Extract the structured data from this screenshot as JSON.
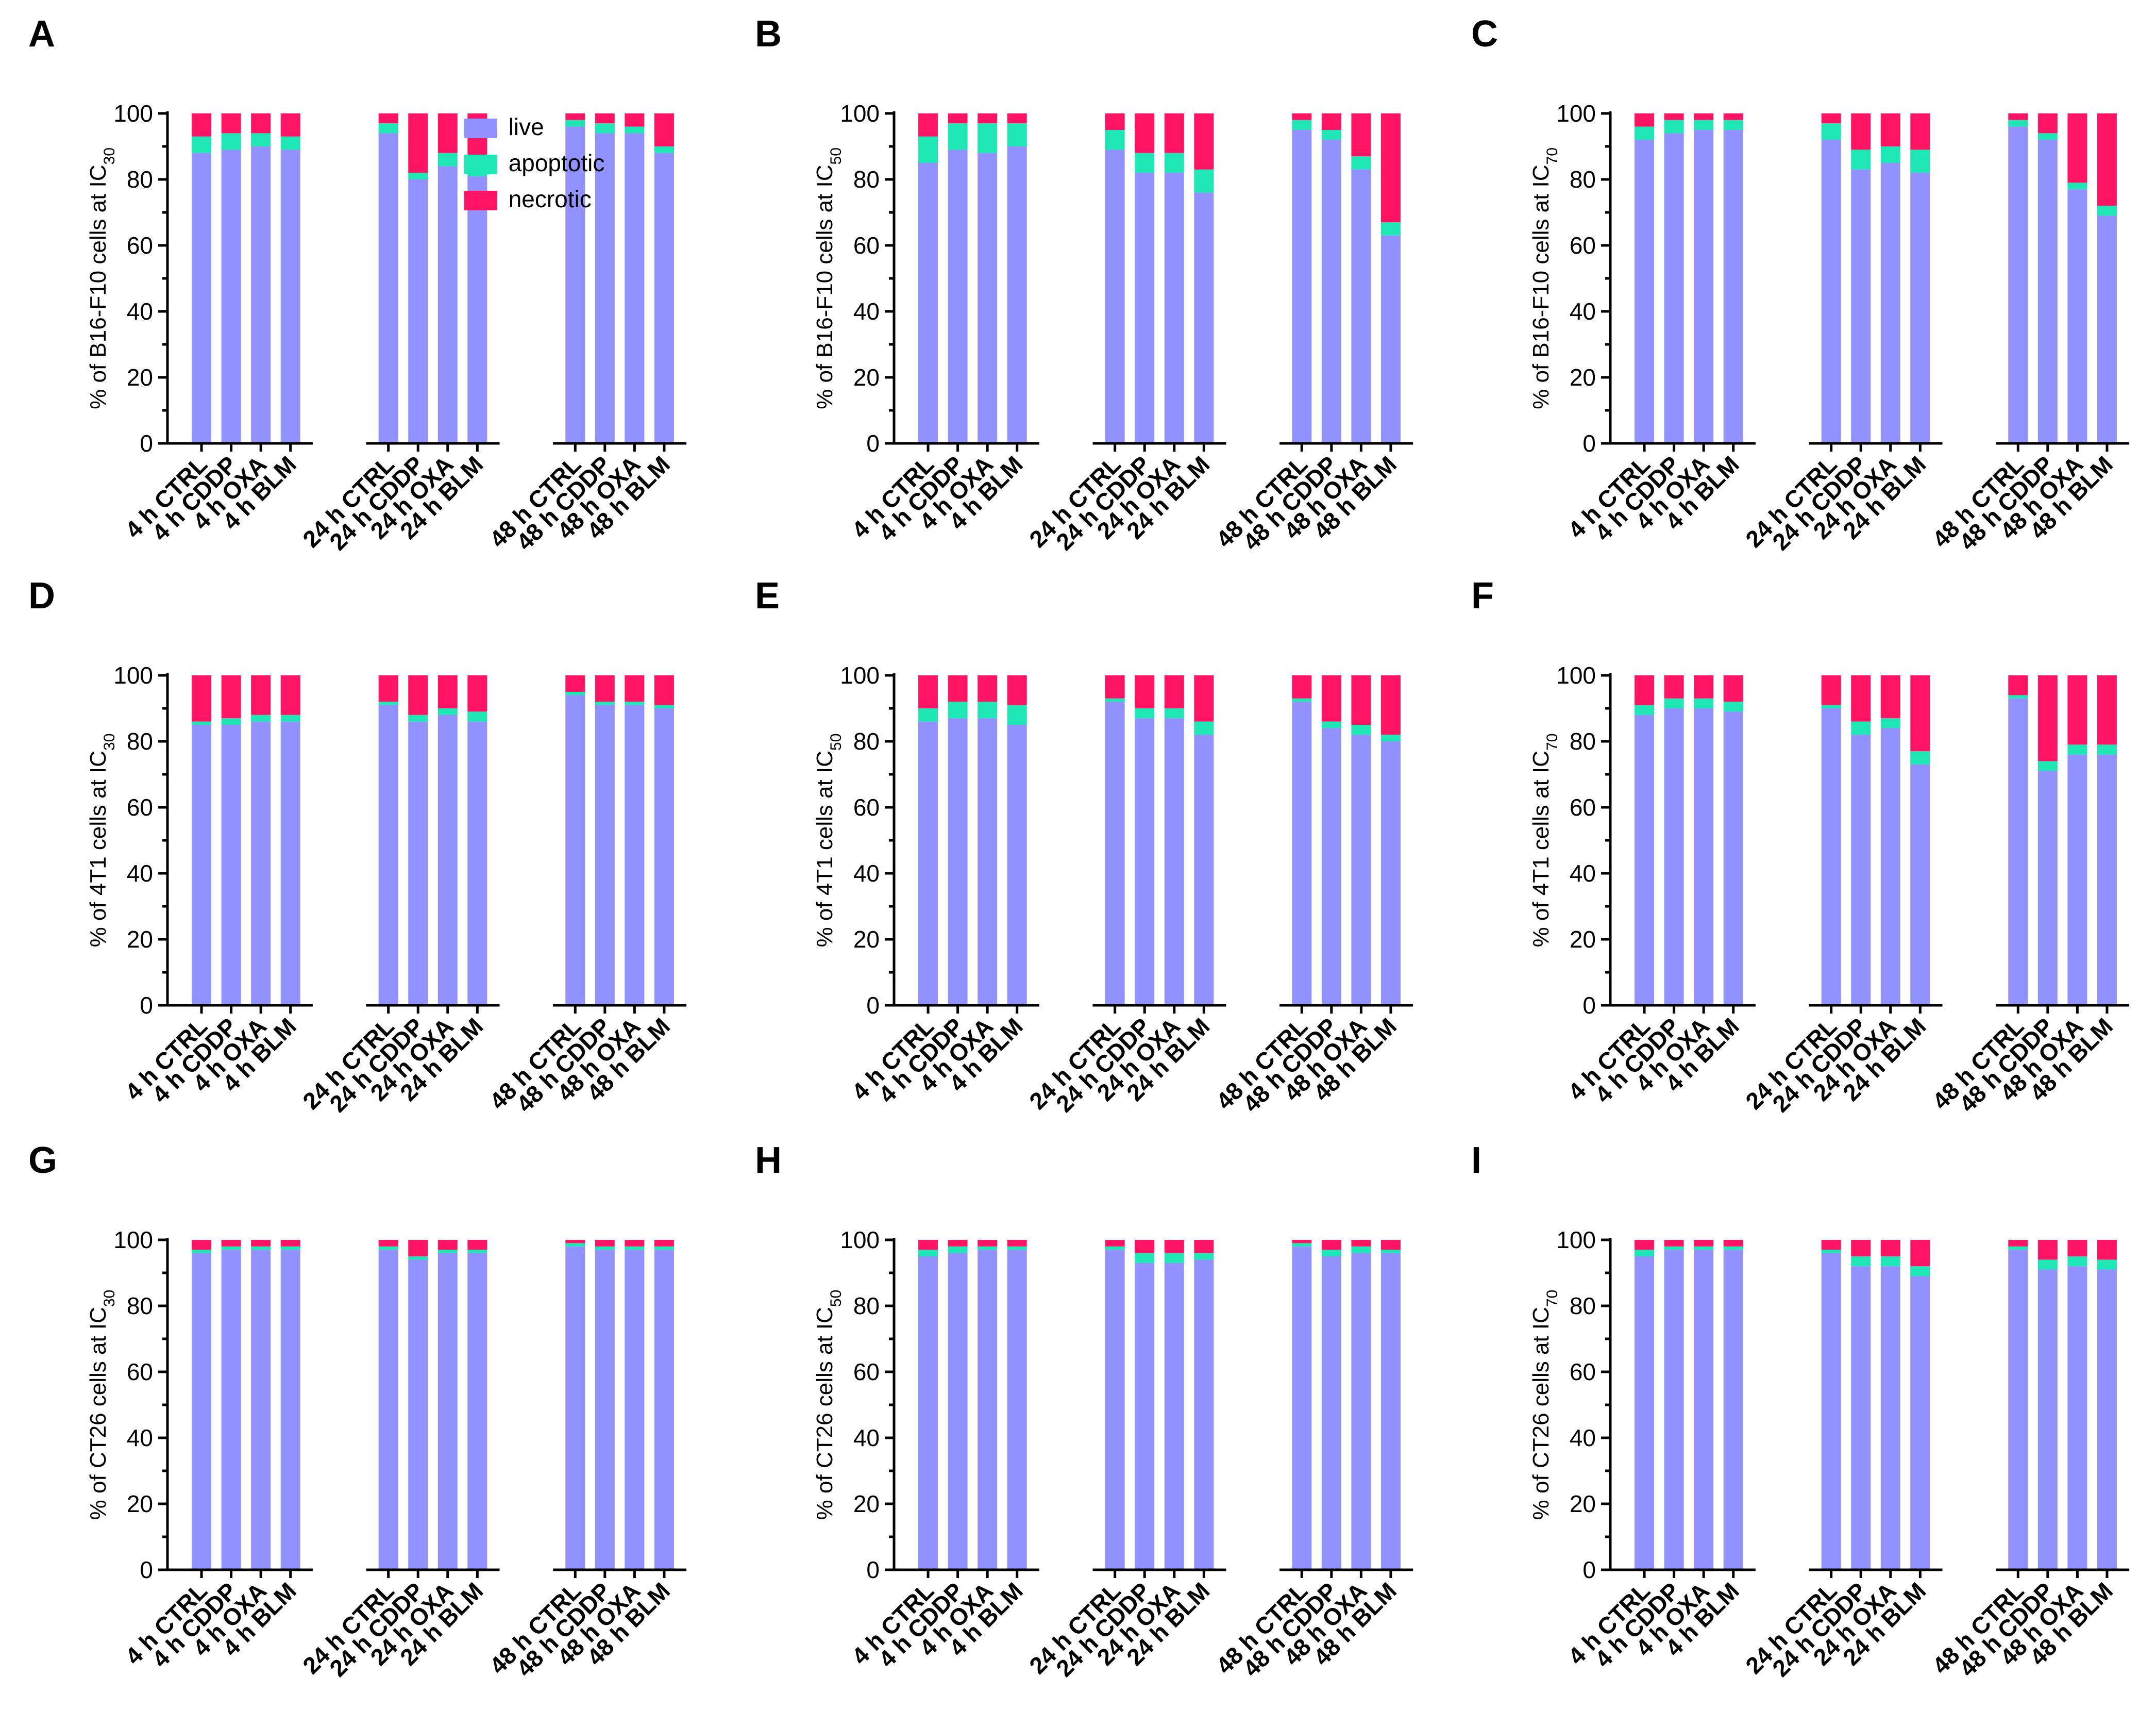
{
  "legend": [
    {
      "name": "live",
      "color": "#9191FF"
    },
    {
      "name": "apoptotic",
      "color": "#1EE6B4"
    },
    {
      "name": "necrotic",
      "color": "#FF1464"
    }
  ],
  "colors": {
    "live": "#9191FF",
    "apoptotic": "#1EE6B4",
    "necrotic": "#FF1464",
    "axis": "#000000"
  },
  "chart_data": [
    {
      "panel": "A",
      "type": "bar",
      "stacked": true,
      "ylabel_main": "% of B16-F10 cells at IC",
      "ylabel_sub": "30",
      "ylim": [
        0,
        100
      ],
      "yticks": [
        "0",
        "20",
        "40",
        "60",
        "80",
        "100"
      ],
      "categories": [
        "4 h CTRL",
        "4 h CDDP",
        "4 h OXA",
        "4 h BLM",
        "24 h CTRL",
        "24 h CDDP",
        "24 h OXA",
        "24 h BLM",
        "48 h CTRL",
        "48 h CDDP",
        "48 h OXA",
        "48 h BLM"
      ],
      "series": [
        {
          "name": "live",
          "values": [
            88,
            89,
            90,
            89,
            94,
            80,
            84,
            81,
            96,
            94,
            94,
            88
          ]
        },
        {
          "name": "apoptotic",
          "values": [
            5,
            5,
            4,
            4,
            3,
            2,
            4,
            4,
            2,
            3,
            2,
            2
          ]
        },
        {
          "name": "necrotic",
          "values": [
            7,
            6,
            6,
            7,
            3,
            18,
            12,
            15,
            2,
            3,
            4,
            10
          ]
        }
      ]
    },
    {
      "panel": "B",
      "type": "bar",
      "stacked": true,
      "ylabel_main": "% of B16-F10 cells at IC",
      "ylabel_sub": "50",
      "ylim": [
        0,
        100
      ],
      "yticks": [
        "0",
        "20",
        "40",
        "60",
        "80",
        "100"
      ],
      "categories": [
        "4 h CTRL",
        "4 h CDDP",
        "4 h OXA",
        "4 h BLM",
        "24 h CTRL",
        "24 h CDDP",
        "24 h OXA",
        "24 h BLM",
        "48 h CTRL",
        "48 h CDDP",
        "48 h OXA",
        "48 h BLM"
      ],
      "series": [
        {
          "name": "live",
          "values": [
            85,
            89,
            88,
            90,
            89,
            82,
            82,
            76,
            95,
            92,
            83,
            63
          ]
        },
        {
          "name": "apoptotic",
          "values": [
            8,
            8,
            9,
            7,
            6,
            6,
            6,
            7,
            3,
            3,
            4,
            4
          ]
        },
        {
          "name": "necrotic",
          "values": [
            7,
            3,
            3,
            3,
            5,
            12,
            12,
            17,
            2,
            5,
            13,
            33
          ]
        }
      ]
    },
    {
      "panel": "C",
      "type": "bar",
      "stacked": true,
      "ylabel_main": "% of B16-F10 cells at IC",
      "ylabel_sub": "70",
      "ylim": [
        0,
        100
      ],
      "yticks": [
        "0",
        "20",
        "40",
        "60",
        "80",
        "100"
      ],
      "categories": [
        "4 h CTRL",
        "4 h CDDP",
        "4 h OXA",
        "4 h BLM",
        "24 h CTRL",
        "24 h CDDP",
        "24 h OXA",
        "24 h BLM",
        "48 h CTRL",
        "48 h CDDP",
        "48 h OXA",
        "48 h BLM"
      ],
      "series": [
        {
          "name": "live",
          "values": [
            92,
            94,
            95,
            95,
            92,
            83,
            85,
            82,
            96,
            92,
            77,
            69
          ]
        },
        {
          "name": "apoptotic",
          "values": [
            4,
            4,
            3,
            3,
            5,
            6,
            5,
            7,
            2,
            2,
            2,
            3
          ]
        },
        {
          "name": "necrotic",
          "values": [
            4,
            2,
            2,
            2,
            3,
            11,
            10,
            11,
            2,
            6,
            21,
            28
          ]
        }
      ]
    },
    {
      "panel": "D",
      "type": "bar",
      "stacked": true,
      "ylabel_main": "% of 4T1 cells at IC",
      "ylabel_sub": "30",
      "ylim": [
        0,
        100
      ],
      "yticks": [
        "0",
        "20",
        "40",
        "60",
        "80",
        "100"
      ],
      "categories": [
        "4 h CTRL",
        "4 h CDDP",
        "4 h OXA",
        "4 h BLM",
        "24 h CTRL",
        "24 h CDDP",
        "24 h OXA",
        "24 h BLM",
        "48 h CTRL",
        "48 h CDDP",
        "48 h OXA",
        "48 h BLM"
      ],
      "series": [
        {
          "name": "live",
          "values": [
            85,
            85,
            86,
            86,
            91,
            86,
            88,
            86,
            94,
            91,
            91,
            90
          ]
        },
        {
          "name": "apoptotic",
          "values": [
            1,
            2,
            2,
            2,
            1,
            2,
            2,
            3,
            1,
            1,
            1,
            1
          ]
        },
        {
          "name": "necrotic",
          "values": [
            14,
            13,
            12,
            12,
            8,
            12,
            10,
            11,
            5,
            8,
            8,
            9
          ]
        }
      ]
    },
    {
      "panel": "E",
      "type": "bar",
      "stacked": true,
      "ylabel_main": "% of 4T1 cells at IC",
      "ylabel_sub": "50",
      "ylim": [
        0,
        100
      ],
      "yticks": [
        "0",
        "20",
        "40",
        "60",
        "80",
        "100"
      ],
      "categories": [
        "4 h CTRL",
        "4 h CDDP",
        "4 h OXA",
        "4 h BLM",
        "24 h CTRL",
        "24 h CDDP",
        "24 h OXA",
        "24 h BLM",
        "48 h CTRL",
        "48 h CDDP",
        "48 h OXA",
        "48 h BLM"
      ],
      "series": [
        {
          "name": "live",
          "values": [
            86,
            87,
            87,
            85,
            92,
            87,
            87,
            82,
            92,
            84,
            82,
            80
          ]
        },
        {
          "name": "apoptotic",
          "values": [
            4,
            5,
            5,
            6,
            1,
            3,
            3,
            4,
            1,
            2,
            3,
            2
          ]
        },
        {
          "name": "necrotic",
          "values": [
            10,
            8,
            8,
            9,
            7,
            10,
            10,
            14,
            7,
            14,
            15,
            18
          ]
        }
      ]
    },
    {
      "panel": "F",
      "type": "bar",
      "stacked": true,
      "ylabel_main": "% of 4T1 cells at IC",
      "ylabel_sub": "70",
      "ylim": [
        0,
        100
      ],
      "yticks": [
        "0",
        "20",
        "40",
        "60",
        "80",
        "100"
      ],
      "categories": [
        "4 h CTRL",
        "4 h CDDP",
        "4 h OXA",
        "4 h BLM",
        "24 h CTRL",
        "24 h CDDP",
        "24 h OXA",
        "24 h BLM",
        "48 h CTRL",
        "48 h CDDP",
        "48 h OXA",
        "48 h BLM"
      ],
      "series": [
        {
          "name": "live",
          "values": [
            88,
            90,
            90,
            89,
            90,
            82,
            84,
            73,
            93,
            71,
            76,
            76
          ]
        },
        {
          "name": "apoptotic",
          "values": [
            3,
            3,
            3,
            3,
            1,
            4,
            3,
            4,
            1,
            3,
            3,
            3
          ]
        },
        {
          "name": "necrotic",
          "values": [
            9,
            7,
            7,
            8,
            9,
            14,
            13,
            23,
            6,
            26,
            21,
            21
          ]
        }
      ]
    },
    {
      "panel": "G",
      "type": "bar",
      "stacked": true,
      "ylabel_main": "% of CT26 cells at IC",
      "ylabel_sub": "30",
      "ylim": [
        0,
        100
      ],
      "yticks": [
        "0",
        "20",
        "40",
        "60",
        "80",
        "100"
      ],
      "categories": [
        "4 h CTRL",
        "4 h CDDP",
        "4 h OXA",
        "4 h BLM",
        "24 h CTRL",
        "24 h CDDP",
        "24 h OXA",
        "24 h BLM",
        "48 h CTRL",
        "48 h CDDP",
        "48 h OXA",
        "48 h BLM"
      ],
      "series": [
        {
          "name": "live",
          "values": [
            96,
            97,
            97,
            97,
            97,
            94,
            96,
            96,
            98,
            97,
            97,
            97
          ]
        },
        {
          "name": "apoptotic",
          "values": [
            1,
            1,
            1,
            1,
            1,
            1,
            1,
            1,
            1,
            1,
            1,
            1
          ]
        },
        {
          "name": "necrotic",
          "values": [
            3,
            2,
            2,
            2,
            2,
            5,
            3,
            3,
            1,
            2,
            2,
            2
          ]
        }
      ]
    },
    {
      "panel": "H",
      "type": "bar",
      "stacked": true,
      "ylabel_main": "% of CT26 cells at IC",
      "ylabel_sub": "50",
      "ylim": [
        0,
        100
      ],
      "yticks": [
        "0",
        "20",
        "40",
        "60",
        "80",
        "100"
      ],
      "categories": [
        "4 h CTRL",
        "4 h CDDP",
        "4 h OXA",
        "4 h BLM",
        "24 h CTRL",
        "24 h CDDP",
        "24 h OXA",
        "24 h BLM",
        "48 h CTRL",
        "48 h CDDP",
        "48 h OXA",
        "48 h BLM"
      ],
      "series": [
        {
          "name": "live",
          "values": [
            95,
            96,
            97,
            97,
            97,
            93,
            93,
            94,
            98,
            95,
            96,
            96
          ]
        },
        {
          "name": "apoptotic",
          "values": [
            2,
            2,
            1,
            1,
            1,
            3,
            3,
            2,
            1,
            2,
            2,
            1
          ]
        },
        {
          "name": "necrotic",
          "values": [
            3,
            2,
            2,
            2,
            2,
            4,
            4,
            4,
            1,
            3,
            2,
            3
          ]
        }
      ]
    },
    {
      "panel": "I",
      "type": "bar",
      "stacked": true,
      "ylabel_main": "% of CT26 cells at IC",
      "ylabel_sub": "70",
      "ylim": [
        0,
        100
      ],
      "yticks": [
        "0",
        "20",
        "40",
        "60",
        "80",
        "100"
      ],
      "categories": [
        "4 h CTRL",
        "4 h CDDP",
        "4 h OXA",
        "4 h BLM",
        "24 h CTRL",
        "24 h CDDP",
        "24 h OXA",
        "24 h BLM",
        "48 h CTRL",
        "48 h CDDP",
        "48 h OXA",
        "48 h BLM"
      ],
      "series": [
        {
          "name": "live",
          "values": [
            95,
            97,
            97,
            97,
            96,
            92,
            92,
            89,
            97,
            91,
            92,
            91
          ]
        },
        {
          "name": "apoptotic",
          "values": [
            2,
            1,
            1,
            1,
            1,
            3,
            3,
            3,
            1,
            3,
            3,
            3
          ]
        },
        {
          "name": "necrotic",
          "values": [
            3,
            2,
            2,
            2,
            3,
            5,
            5,
            8,
            2,
            6,
            5,
            6
          ]
        }
      ]
    }
  ]
}
